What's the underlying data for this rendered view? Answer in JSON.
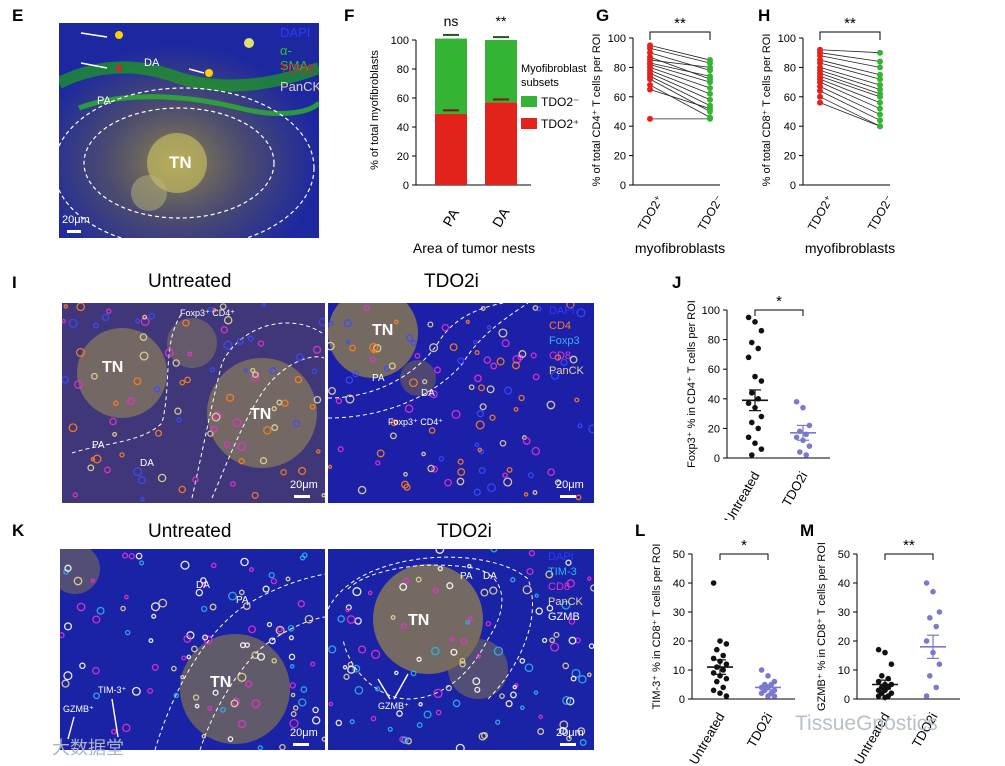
{
  "panel_letters": {
    "E": "E",
    "F": "F",
    "G": "G",
    "H": "H",
    "I": "I",
    "J": "J",
    "K": "K",
    "L": "L",
    "M": "M"
  },
  "panelE": {
    "legend": [
      "DAPI",
      "α-SMA",
      "TDO2",
      "PanCK"
    ],
    "legend_colors": [
      "#2b3cff",
      "#27c427",
      "#e02020",
      "#ddd2b8"
    ],
    "regions": {
      "tn": "TN",
      "pa": "PA",
      "da": "DA"
    },
    "scale": "20μm"
  },
  "panelI": {
    "title_left": "Untreated",
    "title_right": "TDO2i",
    "legend": [
      "DAPI",
      "CD4",
      "Foxp3",
      "CD8",
      "PanCK"
    ],
    "legend_colors": [
      "#2b3cff",
      "#ff7f1f",
      "#2fb5f2",
      "#e832d0",
      "#e6d697"
    ],
    "left_labels": {
      "tn1": "TN",
      "tn2": "TN",
      "pa": "PA",
      "da": "DA",
      "foxp3": "Foxp3⁺ CD4⁺"
    },
    "right_labels": {
      "tn": "TN",
      "pa": "PA",
      "da": "DA",
      "foxp3": "Foxp3⁺ CD4⁺"
    },
    "scale": "20μm"
  },
  "panelK": {
    "title_left": "Untreated",
    "title_right": "TDO2i",
    "legend": [
      "DAPI",
      "TIM-3",
      "CD8",
      "PanCK",
      "GZMB"
    ],
    "legend_colors": [
      "#2b3cff",
      "#2fb5f2",
      "#e832d0",
      "#e6d697",
      "#ffffff"
    ],
    "left_labels": {
      "tn": "TN",
      "pa": "PA",
      "da": "DA",
      "gzmb": "GZMB⁺",
      "tim3": "TIM-3⁺"
    },
    "right_labels": {
      "tn": "TN",
      "pa": "PA",
      "da": "DA",
      "gzmb": "GZMB⁺"
    },
    "scale": "20μm"
  },
  "watermarks": {
    "left": "大数据堂",
    "right": "TissueGnostics"
  },
  "chart_data": [
    {
      "panel": "F",
      "type": "bar",
      "categories": [
        "PA",
        "DA"
      ],
      "series": [
        {
          "name": "TDO2⁺",
          "values": [
            49,
            57
          ],
          "errors": [
            2.5,
            2
          ],
          "color": "#e3231b"
        },
        {
          "name": "TDO2⁻",
          "values": [
            52,
            43
          ],
          "errors": [
            2.5,
            2
          ],
          "color": "#35b335"
        }
      ],
      "significance": [
        "ns",
        "**"
      ],
      "ylabel": "% of total myofibroblasts",
      "xlabel": "Area of tumor nests",
      "legend_title": "Myofibroblast subsets",
      "ylim": [
        0,
        100
      ],
      "yticks": [
        0,
        20,
        40,
        60,
        80,
        100
      ]
    },
    {
      "panel": "G",
      "type": "scatter",
      "categories": [
        "TDO2⁺",
        "TDO2⁻"
      ],
      "pairs": [
        [
          95,
          85
        ],
        [
          93,
          83
        ],
        [
          90,
          78
        ],
        [
          87,
          72
        ],
        [
          85,
          80
        ],
        [
          83,
          74
        ],
        [
          82,
          70
        ],
        [
          80,
          66
        ],
        [
          78,
          62
        ],
        [
          76,
          58
        ],
        [
          74,
          54
        ],
        [
          72,
          50
        ],
        [
          68,
          46
        ],
        [
          65,
          52
        ],
        [
          45,
          45
        ]
      ],
      "colors": [
        "#e3231b",
        "#35b335"
      ],
      "significance": "**",
      "ylabel": "% of total CD4⁺ T cells per ROI",
      "xlabel": "myofibroblasts",
      "ylim": [
        0,
        100
      ],
      "yticks": [
        0,
        20,
        40,
        60,
        80,
        100
      ]
    },
    {
      "panel": "H",
      "type": "scatter",
      "categories": [
        "TDO2⁺",
        "TDO2⁻"
      ],
      "pairs": [
        [
          92,
          90
        ],
        [
          90,
          84
        ],
        [
          88,
          80
        ],
        [
          85,
          75
        ],
        [
          83,
          72
        ],
        [
          80,
          68
        ],
        [
          78,
          65
        ],
        [
          76,
          62
        ],
        [
          74,
          60
        ],
        [
          72,
          56
        ],
        [
          70,
          52
        ],
        [
          67,
          48
        ],
        [
          64,
          44
        ],
        [
          60,
          40
        ],
        [
          56,
          40
        ]
      ],
      "colors": [
        "#e3231b",
        "#35b335"
      ],
      "significance": "**",
      "ylabel": "% of total CD8⁺ T cells per ROI",
      "xlabel": "myofibroblasts",
      "ylim": [
        0,
        100
      ],
      "yticks": [
        0,
        20,
        40,
        60,
        80,
        100
      ]
    },
    {
      "panel": "J",
      "type": "scatter",
      "categories": [
        "Untreated",
        "TDO2i"
      ],
      "groups": [
        {
          "name": "Untreated",
          "values": [
            95,
            92,
            86,
            78,
            74,
            68,
            55,
            52,
            44,
            40,
            37,
            34,
            28,
            24,
            20,
            14,
            10,
            6,
            2
          ],
          "mean": 39,
          "sem": 7,
          "color": "#111111"
        },
        {
          "name": "TDO2i",
          "values": [
            38,
            34,
            22,
            18,
            16,
            14,
            12,
            8,
            4,
            2
          ],
          "mean": 17,
          "sem": 5,
          "color": "#7b79cf"
        }
      ],
      "significance": "*",
      "ylabel": "Foxp3⁺ % in CD4⁺ T cells per ROI",
      "ylim": [
        0,
        100
      ],
      "yticks": [
        0,
        20,
        40,
        60,
        80,
        100
      ]
    },
    {
      "panel": "L",
      "type": "scatter",
      "categories": [
        "Untreated",
        "TDO2i"
      ],
      "groups": [
        {
          "name": "Untreated",
          "values": [
            40,
            20,
            19,
            17,
            15,
            14,
            13,
            12,
            11,
            10,
            9,
            8,
            7,
            6,
            4,
            3,
            2,
            1
          ],
          "mean": 11,
          "sem": 2.5,
          "color": "#111111"
        },
        {
          "name": "TDO2i",
          "values": [
            10,
            8,
            6,
            5,
            5,
            4,
            4,
            3,
            3,
            2,
            2,
            1,
            1
          ],
          "mean": 4,
          "sem": 0.8,
          "color": "#7b79cf"
        }
      ],
      "significance": "*",
      "ylabel": "TIM-3⁺ % in CD8⁺ T cells per ROI",
      "ylim": [
        0,
        50
      ],
      "yticks": [
        0,
        10,
        20,
        30,
        40,
        50
      ]
    },
    {
      "panel": "M",
      "type": "scatter",
      "categories": [
        "Untreated",
        "TDO2i"
      ],
      "groups": [
        {
          "name": "Untreated",
          "values": [
            17,
            16,
            12,
            8,
            7,
            6,
            5,
            5,
            4,
            4,
            3,
            3,
            2,
            2,
            1,
            1,
            0.5
          ],
          "mean": 5,
          "sem": 1.5,
          "color": "#111111"
        },
        {
          "name": "TDO2i",
          "values": [
            40,
            37,
            30,
            28,
            25,
            20,
            16,
            12,
            8,
            4,
            1
          ],
          "mean": 18,
          "sem": 4,
          "color": "#7b79cf"
        }
      ],
      "significance": "**",
      "ylabel": "GZMB⁺ % in CD8⁺ T cells per ROI",
      "ylim": [
        0,
        50
      ],
      "yticks": [
        0,
        10,
        20,
        30,
        40,
        50
      ]
    }
  ]
}
